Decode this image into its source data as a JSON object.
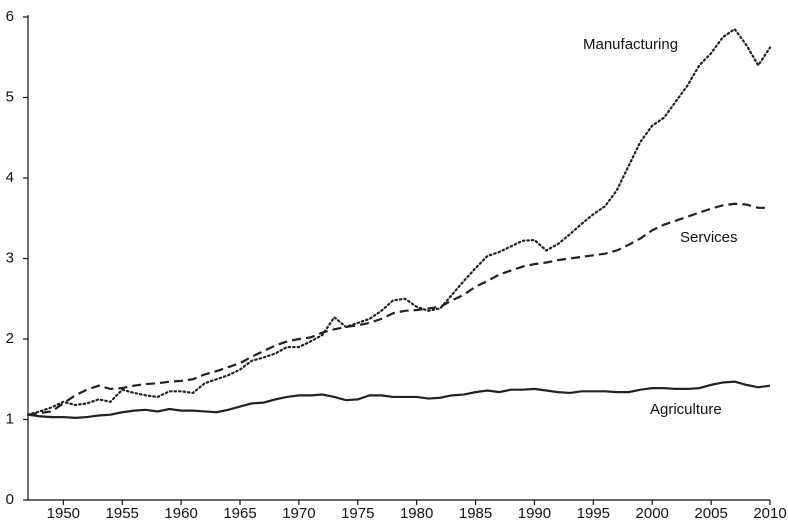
{
  "chart_data": {
    "type": "line",
    "x": [
      1947,
      1948,
      1949,
      1950,
      1951,
      1952,
      1953,
      1954,
      1955,
      1956,
      1957,
      1958,
      1959,
      1960,
      1961,
      1962,
      1963,
      1964,
      1965,
      1966,
      1967,
      1968,
      1969,
      1970,
      1971,
      1972,
      1973,
      1974,
      1975,
      1976,
      1977,
      1978,
      1979,
      1980,
      1981,
      1982,
      1983,
      1984,
      1985,
      1986,
      1987,
      1988,
      1989,
      1990,
      1991,
      1992,
      1993,
      1994,
      1995,
      1996,
      1997,
      1998,
      1999,
      2000,
      2001,
      2002,
      2003,
      2004,
      2005,
      2006,
      2007,
      2008,
      2009,
      2010
    ],
    "series": [
      {
        "name": "Manufacturing",
        "color": "#222222",
        "style": "dotted",
        "values": [
          1.06,
          1.1,
          1.15,
          1.22,
          1.18,
          1.2,
          1.25,
          1.22,
          1.37,
          1.33,
          1.3,
          1.28,
          1.35,
          1.35,
          1.33,
          1.45,
          1.5,
          1.55,
          1.62,
          1.73,
          1.77,
          1.82,
          1.9,
          1.9,
          1.97,
          2.05,
          2.27,
          2.15,
          2.2,
          2.25,
          2.35,
          2.48,
          2.5,
          2.4,
          2.35,
          2.38,
          2.55,
          2.72,
          2.88,
          3.03,
          3.08,
          3.15,
          3.22,
          3.23,
          3.1,
          3.18,
          3.3,
          3.43,
          3.55,
          3.65,
          3.85,
          4.15,
          4.45,
          4.65,
          4.75,
          4.95,
          5.15,
          5.4,
          5.55,
          5.75,
          5.85,
          5.65,
          5.4,
          5.62
        ]
      },
      {
        "name": "Services",
        "color": "#222222",
        "style": "dashed",
        "values": [
          1.06,
          1.08,
          1.1,
          1.2,
          1.3,
          1.37,
          1.42,
          1.38,
          1.39,
          1.42,
          1.44,
          1.45,
          1.47,
          1.48,
          1.5,
          1.56,
          1.6,
          1.65,
          1.7,
          1.78,
          1.85,
          1.92,
          1.97,
          2.0,
          2.02,
          2.08,
          2.12,
          2.15,
          2.17,
          2.2,
          2.25,
          2.32,
          2.35,
          2.36,
          2.38,
          2.4,
          2.48,
          2.55,
          2.65,
          2.72,
          2.8,
          2.85,
          2.9,
          2.93,
          2.95,
          2.98,
          3.0,
          3.02,
          3.04,
          3.06,
          3.1,
          3.17,
          3.25,
          3.35,
          3.42,
          3.47,
          3.52,
          3.57,
          3.62,
          3.66,
          3.68,
          3.67,
          3.63,
          3.63
        ]
      },
      {
        "name": "Agriculture",
        "color": "#222222",
        "style": "solid",
        "values": [
          1.06,
          1.04,
          1.03,
          1.03,
          1.02,
          1.03,
          1.05,
          1.06,
          1.09,
          1.11,
          1.12,
          1.1,
          1.13,
          1.11,
          1.11,
          1.1,
          1.09,
          1.12,
          1.16,
          1.2,
          1.21,
          1.25,
          1.28,
          1.3,
          1.3,
          1.31,
          1.28,
          1.24,
          1.25,
          1.3,
          1.3,
          1.28,
          1.28,
          1.28,
          1.26,
          1.27,
          1.3,
          1.31,
          1.34,
          1.36,
          1.34,
          1.37,
          1.37,
          1.38,
          1.36,
          1.34,
          1.33,
          1.35,
          1.35,
          1.35,
          1.34,
          1.34,
          1.37,
          1.39,
          1.39,
          1.38,
          1.38,
          1.39,
          1.43,
          1.46,
          1.47,
          1.43,
          1.4,
          1.42
        ]
      }
    ],
    "xlim": [
      1947,
      2010
    ],
    "xticks": [
      1950,
      1955,
      1960,
      1965,
      1970,
      1975,
      1980,
      1985,
      1990,
      1995,
      2000,
      2005,
      2010
    ],
    "ylim": [
      0,
      6
    ],
    "yticks": [
      0,
      1,
      2,
      3,
      4,
      5,
      6
    ],
    "grid": false
  }
}
